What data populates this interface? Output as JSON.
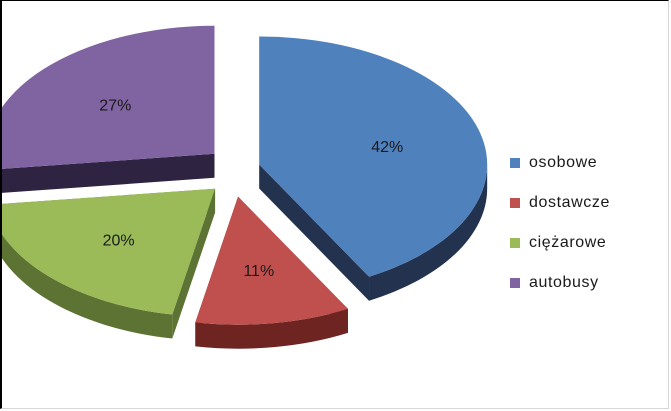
{
  "chart_data": {
    "type": "pie",
    "style": "3d-exploded",
    "title": "",
    "legend_position": "right",
    "slices": [
      {
        "name": "osobowe",
        "value": 42,
        "label": "42%",
        "color": "#4F81BD",
        "side_color": "#22324F"
      },
      {
        "name": "dostawcze",
        "value": 11,
        "label": "11%",
        "color": "#C0504D",
        "side_color": "#6E2522"
      },
      {
        "name": "ciężarowe",
        "value": 20,
        "label": "20%",
        "color": "#9BBB59",
        "side_color": "#5C7333"
      },
      {
        "name": "autobusy",
        "value": 27,
        "label": "27%",
        "color": "#8064A2",
        "side_color": "#2E2340"
      }
    ]
  }
}
